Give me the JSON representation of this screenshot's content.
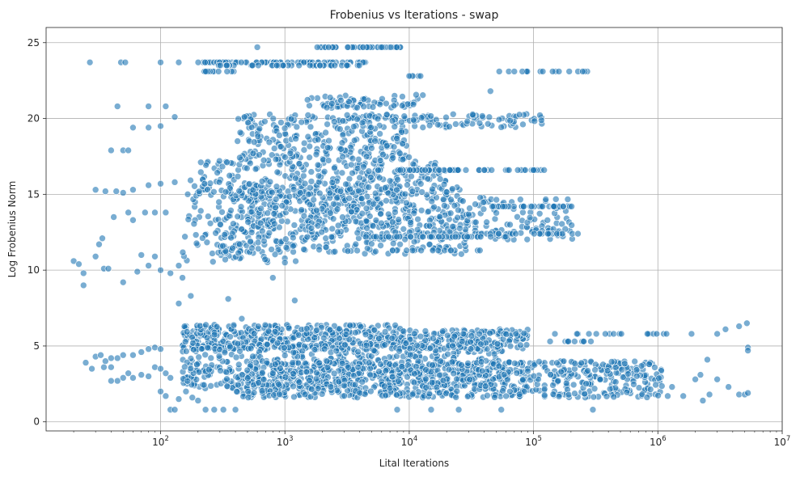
{
  "chart_data": {
    "type": "scatter",
    "title": "Frobenius vs Iterations - swap",
    "xlabel": "Lital Iterations",
    "ylabel": "Log Frobenius Norm",
    "x_scale": "log",
    "xlim": [
      12,
      10000000
    ],
    "ylim": [
      -0.6,
      26.0
    ],
    "x_ticks": [
      {
        "base": "10",
        "exp": "2",
        "value": 100
      },
      {
        "base": "10",
        "exp": "3",
        "value": 1000
      },
      {
        "base": "10",
        "exp": "4",
        "value": 10000
      },
      {
        "base": "10",
        "exp": "5",
        "value": 100000
      },
      {
        "base": "10",
        "exp": "6",
        "value": 1000000
      },
      {
        "base": "10",
        "exp": "7",
        "value": 10000000
      }
    ],
    "y_ticks": [
      {
        "label": "0",
        "value": 0
      },
      {
        "label": "5",
        "value": 5
      },
      {
        "label": "10",
        "value": 10
      },
      {
        "label": "15",
        "value": 15
      },
      {
        "label": "20",
        "value": 20
      },
      {
        "label": "25",
        "value": 25
      }
    ],
    "grid": true,
    "marker_color": "#1f77b4",
    "marker_alpha": 0.6,
    "series": [
      {
        "points": [
          [
            20,
            10.6
          ],
          [
            22,
            10.4
          ],
          [
            24,
            9.8
          ],
          [
            24,
            9.0
          ],
          [
            27,
            23.7
          ],
          [
            30,
            10.9
          ],
          [
            32,
            11.7
          ],
          [
            34,
            12.1
          ],
          [
            35,
            10.1
          ],
          [
            38,
            10.1
          ],
          [
            30,
            15.3
          ],
          [
            36,
            15.2
          ],
          [
            44,
            15.2
          ],
          [
            50,
            15.1
          ],
          [
            60,
            15.3
          ],
          [
            80,
            15.6
          ],
          [
            100,
            15.7
          ],
          [
            130,
            15.8
          ],
          [
            40,
            17.9
          ],
          [
            50,
            17.9
          ],
          [
            55,
            17.9
          ],
          [
            48,
            23.7
          ],
          [
            52,
            23.7
          ],
          [
            100,
            23.7
          ],
          [
            140,
            23.7
          ],
          [
            45,
            20.8
          ],
          [
            60,
            19.4
          ],
          [
            80,
            19.4
          ],
          [
            100,
            19.5
          ],
          [
            110,
            20.8
          ],
          [
            80,
            20.8
          ],
          [
            130,
            20.1
          ],
          [
            42,
            13.5
          ],
          [
            55,
            13.8
          ],
          [
            75,
            13.8
          ],
          [
            90,
            13.8
          ],
          [
            110,
            13.8
          ],
          [
            60,
            13.3
          ],
          [
            70,
            11.0
          ],
          [
            90,
            10.9
          ],
          [
            50,
            9.2
          ],
          [
            65,
            9.9
          ],
          [
            80,
            10.3
          ],
          [
            100,
            10.0
          ],
          [
            120,
            9.8
          ],
          [
            140,
            10.3
          ],
          [
            150,
            9.5
          ],
          [
            140,
            7.8
          ],
          [
            175,
            8.3
          ],
          [
            25,
            3.9
          ],
          [
            28,
            3.5
          ],
          [
            30,
            4.3
          ],
          [
            33,
            4.4
          ],
          [
            36,
            4.0
          ],
          [
            40,
            4.2
          ],
          [
            45,
            4.2
          ],
          [
            50,
            4.4
          ],
          [
            60,
            4.4
          ],
          [
            70,
            4.6
          ],
          [
            80,
            4.8
          ],
          [
            90,
            4.9
          ],
          [
            100,
            4.8
          ],
          [
            35,
            3.6
          ],
          [
            40,
            3.6
          ],
          [
            45,
            2.7
          ],
          [
            50,
            2.9
          ],
          [
            55,
            3.2
          ],
          [
            60,
            2.9
          ],
          [
            70,
            3.1
          ],
          [
            80,
            3.0
          ],
          [
            90,
            3.6
          ],
          [
            100,
            3.5
          ],
          [
            110,
            3.2
          ],
          [
            120,
            2.9
          ],
          [
            40,
            2.7
          ],
          [
            100,
            2.0
          ],
          [
            110,
            1.7
          ],
          [
            120,
            0.8
          ],
          [
            130,
            0.8
          ],
          [
            140,
            1.5
          ],
          [
            160,
            2.0
          ],
          [
            180,
            1.6
          ],
          [
            200,
            1.4
          ],
          [
            230,
            0.8
          ],
          [
            270,
            0.8
          ],
          [
            320,
            0.8
          ],
          [
            400,
            0.8
          ]
        ],
        "bands": [
          {
            "x_range": [
              150,
              9000
            ],
            "y_range": [
              4.8,
              6.4
            ],
            "n": 460,
            "seed": 11
          },
          {
            "x_range": [
              150,
              60000
            ],
            "y_range": [
              2.2,
              5.2
            ],
            "n": 560,
            "seed": 12
          },
          {
            "x_range": [
              400,
              1100000
            ],
            "y_range": [
              1.6,
              4.0
            ],
            "n": 820,
            "seed": 13
          },
          {
            "x_range": [
              9000,
              90000
            ],
            "y_range": [
              4.8,
              6.1
            ],
            "n": 170,
            "seed": 14
          },
          {
            "x_range": [
              150,
              1500
            ],
            "y_range": [
              10.5,
              16.0
            ],
            "n": 160,
            "seed": 21
          },
          {
            "x_range": [
              300,
              30000
            ],
            "y_range": [
              11.0,
              15.6
            ],
            "n": 420,
            "seed": 22
          },
          {
            "x_range": [
              1500,
              210000
            ],
            "y_range": [
              12.0,
              14.8
            ],
            "n": 240,
            "seed": 23
          },
          {
            "x_range": [
              200,
              20000
            ],
            "y_range": [
              15.0,
              17.2
            ],
            "n": 240,
            "seed": 24
          },
          {
            "x_range": [
              400,
              10000
            ],
            "y_range": [
              17.2,
              20.3
            ],
            "n": 260,
            "seed": 25
          },
          {
            "x_range": [
              3000,
              120000
            ],
            "y_range": [
              19.4,
              20.3
            ],
            "n": 90,
            "seed": 26
          },
          {
            "x_range": [
              1500,
              14000
            ],
            "y_range": [
              20.7,
              21.6
            ],
            "n": 70,
            "seed": 27
          }
        ],
        "rows": [
          {
            "y": 23.7,
            "x_range": [
              200,
              5000
            ],
            "n": 80
          },
          {
            "y": 23.5,
            "x_range": [
              250,
              4000
            ],
            "n": 45
          },
          {
            "y": 23.1,
            "x_range": [
              220,
              400
            ],
            "n": 12
          },
          {
            "y": 24.7,
            "x_range": [
              1800,
              8500
            ],
            "n": 45
          },
          {
            "y": 23.1,
            "x_range": [
              50000,
              300000
            ],
            "n": 14
          },
          {
            "y": 22.8,
            "x_range": [
              10000,
              13000
            ],
            "n": 5
          },
          {
            "y": 16.6,
            "x_range": [
              10000,
              130000
            ],
            "n": 40
          },
          {
            "y": 16.6,
            "x_range": [
              5000,
              30000
            ],
            "n": 20
          },
          {
            "y": 14.2,
            "x_range": [
              40000,
              220000
            ],
            "n": 30
          },
          {
            "y": 12.4,
            "x_range": [
              30000,
              230000
            ],
            "n": 28
          },
          {
            "y": 12.2,
            "x_range": [
              4000,
              60000
            ],
            "n": 40
          },
          {
            "y": 11.3,
            "x_range": [
              6000,
              40000
            ],
            "n": 14
          },
          {
            "y": 5.8,
            "x_range": [
              100000,
              2000000
            ],
            "n": 18
          },
          {
            "y": 5.3,
            "x_range": [
              120000,
              300000
            ],
            "n": 10
          }
        ],
        "extra_points": [
          [
            3500000,
            6.1
          ],
          [
            4500000,
            6.3
          ],
          [
            5200000,
            6.5
          ],
          [
            5300000,
            4.9
          ],
          [
            5300000,
            4.7
          ],
          [
            3000000,
            5.8
          ],
          [
            2500000,
            4.1
          ],
          [
            2200000,
            3.1
          ],
          [
            3000000,
            2.8
          ],
          [
            3700000,
            2.3
          ],
          [
            4500000,
            1.8
          ],
          [
            5000000,
            1.8
          ],
          [
            5300000,
            1.9
          ],
          [
            2000000,
            2.8
          ],
          [
            1600000,
            1.7
          ],
          [
            1200000,
            1.7
          ],
          [
            2600000,
            1.8
          ],
          [
            1300000,
            2.3
          ],
          [
            2300000,
            1.4
          ],
          [
            45000,
            21.8
          ],
          [
            53000,
            23.1
          ],
          [
            70000,
            23.1
          ],
          [
            160000,
            23.1
          ],
          [
            3200,
            24.7
          ],
          [
            10000,
            22.8
          ],
          [
            8000,
            0.8
          ],
          [
            15000,
            0.8
          ],
          [
            25000,
            0.8
          ],
          [
            55000,
            0.8
          ],
          [
            300000,
            0.8
          ],
          [
            600,
            24.7
          ],
          [
            350,
            8.1
          ],
          [
            450,
            6.8
          ],
          [
            800,
            9.5
          ],
          [
            1000,
            10.5
          ],
          [
            1200,
            8.0
          ]
        ]
      }
    ]
  }
}
